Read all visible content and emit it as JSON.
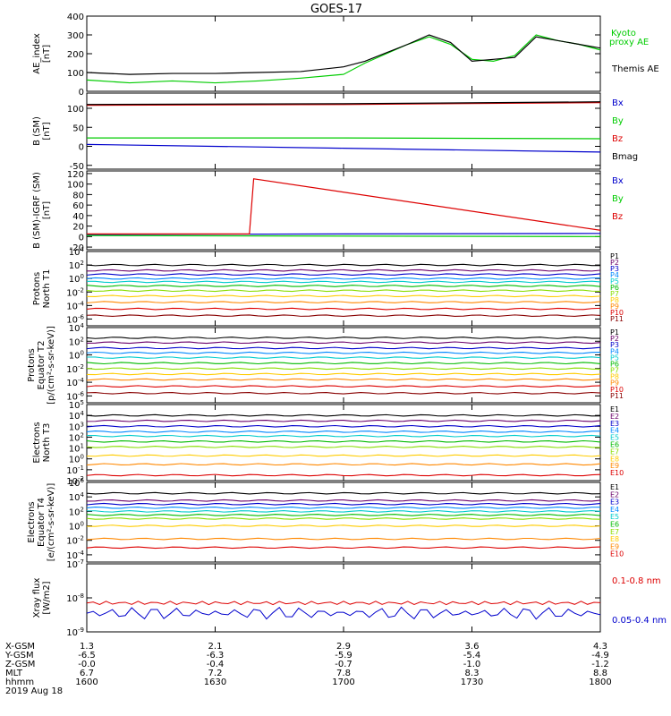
{
  "title": "GOES-17",
  "colors": {
    "black": "#000000",
    "green": "#00cc00",
    "blue": "#0000cc",
    "red": "#dd0000",
    "P": [
      "#000000",
      "#6a006a",
      "#0000cc",
      "#0088ff",
      "#00cccc",
      "#00bb00",
      "#88dd00",
      "#ffcc00",
      "#ff8800",
      "#dd0000",
      "#880000"
    ]
  },
  "time_axis": {
    "ticks": [
      "1600",
      "1630",
      "1700",
      "1730",
      "1800"
    ],
    "range": [
      "1600",
      "1800"
    ]
  },
  "orbit": {
    "labels": [
      "X-GSM",
      "Y-GSM",
      "Z-GSM",
      "MLT",
      "hhmm",
      "2019 Aug 18"
    ],
    "rows": [
      [
        "1.3",
        "2.1",
        "2.9",
        "3.6",
        "4.3"
      ],
      [
        "-6.5",
        "-6.3",
        "-5.9",
        "-5.4",
        "-4.9"
      ],
      [
        "-0.0",
        "-0.4",
        "-0.7",
        "-1.0",
        "-1.2"
      ],
      [
        "6.7",
        "7.2",
        "7.8",
        "8.3",
        "8.8"
      ],
      [
        "1600",
        "1630",
        "1700",
        "1730",
        "1800"
      ]
    ]
  },
  "chart_data": [
    {
      "type": "line",
      "ylabel": [
        "AE_index",
        "[nT]"
      ],
      "ylim": [
        0,
        400
      ],
      "ticks": [
        "400",
        "300",
        "200",
        "100",
        "0"
      ],
      "legend": [
        "Kyoto",
        "proxy AE",
        "Themis AE"
      ],
      "series": [
        {
          "name": "Kyoto proxy AE",
          "x": [
            0,
            10,
            20,
            30,
            40,
            50,
            60,
            65,
            70,
            75,
            80,
            85,
            90,
            95,
            100,
            105,
            110,
            115,
            120
          ],
          "values": [
            60,
            45,
            55,
            45,
            55,
            70,
            90,
            150,
            200,
            250,
            290,
            250,
            170,
            160,
            190,
            300,
            270,
            250,
            220
          ]
        },
        {
          "name": "Themis AE",
          "x": [
            0,
            10,
            20,
            30,
            40,
            50,
            60,
            65,
            70,
            75,
            80,
            85,
            90,
            95,
            100,
            105,
            110,
            115,
            120
          ],
          "values": [
            100,
            90,
            95,
            95,
            100,
            105,
            130,
            160,
            205,
            250,
            300,
            260,
            160,
            170,
            180,
            290,
            270,
            250,
            230
          ]
        }
      ]
    },
    {
      "type": "line",
      "ylabel": [
        "B (SM)",
        "[nT]"
      ],
      "ylim": [
        -60,
        140
      ],
      "ticks": [
        "100",
        "50",
        "0",
        "-50"
      ],
      "legend": [
        "Bx",
        "By",
        "Bz",
        "Bmag"
      ],
      "series": [
        {
          "name": "Bx",
          "x": [
            0,
            60,
            120
          ],
          "values": [
            5,
            -5,
            -15
          ]
        },
        {
          "name": "By",
          "x": [
            0,
            60,
            120
          ],
          "values": [
            22,
            22,
            20
          ]
        },
        {
          "name": "Bz",
          "x": [
            0,
            60,
            120
          ],
          "values": [
            108,
            110,
            115
          ]
        },
        {
          "name": "Bmag",
          "x": [
            0,
            60,
            120
          ],
          "values": [
            110,
            112,
            117
          ]
        }
      ]
    },
    {
      "type": "line",
      "ylabel": [
        "B (SM)-IGRF (SM)",
        "[nT]"
      ],
      "ylim": [
        -25,
        125
      ],
      "ticks": [
        "120",
        "100",
        "80",
        "60",
        "40",
        "20",
        "0",
        "-20"
      ],
      "legend": [
        "Bx",
        "By",
        "Bz"
      ],
      "series": [
        {
          "name": "Bx",
          "x": [
            0,
            120
          ],
          "values": [
            4,
            6
          ]
        },
        {
          "name": "By",
          "x": [
            0,
            120
          ],
          "values": [
            2,
            0
          ]
        },
        {
          "name": "Bz",
          "x": [
            0,
            38,
            39,
            120
          ],
          "values": [
            5,
            5,
            110,
            12
          ]
        }
      ]
    },
    {
      "type": "line",
      "ylabel": [
        "Protons",
        "North T1"
      ],
      "log": true,
      "ylim": [
        -7,
        4
      ],
      "ticks": [
        "10^4",
        "10^2",
        "10^0",
        "10^-2",
        "10^-4",
        "10^-6"
      ],
      "legend": [
        "P1",
        "P2",
        "P3",
        "P4",
        "P5",
        "P6",
        "P7",
        "P8",
        "P9",
        "P10",
        "P11"
      ],
      "series_values": [
        2,
        1.2,
        0.6,
        0,
        -0.5,
        -1.1,
        -1.8,
        -2.6,
        -3.5,
        -4.5,
        -5.5
      ]
    },
    {
      "type": "line",
      "ylabel": [
        "Protons",
        "Equator T2",
        "[p/(cm²-s-sr-keV)]"
      ],
      "log": true,
      "ylim": [
        -7,
        4
      ],
      "ticks": [
        "10^4",
        "10^2",
        "10^0",
        "10^-2",
        "10^-4",
        "10^-6"
      ],
      "legend": [
        "P1",
        "P2",
        "P3",
        "P4",
        "P5",
        "P6",
        "P7",
        "P8",
        "P9",
        "P10",
        "P11"
      ],
      "series_values": [
        2.5,
        1.8,
        1,
        0.3,
        -0.4,
        -1.2,
        -2,
        -2.8,
        -3.6,
        -4.6,
        -5.6
      ]
    },
    {
      "type": "line",
      "ylabel": [
        "Electrons",
        "North T3"
      ],
      "log": true,
      "ylim": [
        -2,
        5
      ],
      "ticks": [
        "10^5",
        "10^4",
        "10^3",
        "10^2",
        "10^1",
        "10^0",
        "10^-1",
        "10^-2"
      ],
      "legend": [
        "E1",
        "E2",
        "E3",
        "E4",
        "E5",
        "E6",
        "E7",
        "E8",
        "E9",
        "E10"
      ],
      "series_values": [
        4,
        3.5,
        3,
        2.5,
        2.1,
        1.6,
        1.1,
        0.3,
        -0.5,
        -1.5
      ]
    },
    {
      "type": "line",
      "ylabel": [
        "Electrons",
        "Equator T4",
        "[e/(cm²-s-sr-keV)]"
      ],
      "log": true,
      "ylim": [
        -5,
        6
      ],
      "ticks": [
        "10^6",
        "10^4",
        "10^2",
        "10^0",
        "10^-2",
        "10^-4"
      ],
      "legend": [
        "E1",
        "E2",
        "E3",
        "E4",
        "E5",
        "E6",
        "E7",
        "E8",
        "E9",
        "E10"
      ],
      "series_values": [
        4.5,
        3.5,
        3,
        2.5,
        2,
        1.5,
        1,
        0,
        -1.8,
        -3
      ]
    },
    {
      "type": "line",
      "ylabel": [
        "Xray flux",
        "[W/m2]"
      ],
      "log": true,
      "ylim": [
        -9,
        -7
      ],
      "ticks": [
        "10^-7",
        "10^-8",
        "10^-9"
      ],
      "legend": [
        "0.1-0.8 nm",
        "0.05-0.4 nm"
      ],
      "series": [
        {
          "name": "0.1-0.8 nm",
          "mean": -8.15
        },
        {
          "name": "0.05-0.4 nm",
          "mean": -8.45
        }
      ]
    }
  ]
}
